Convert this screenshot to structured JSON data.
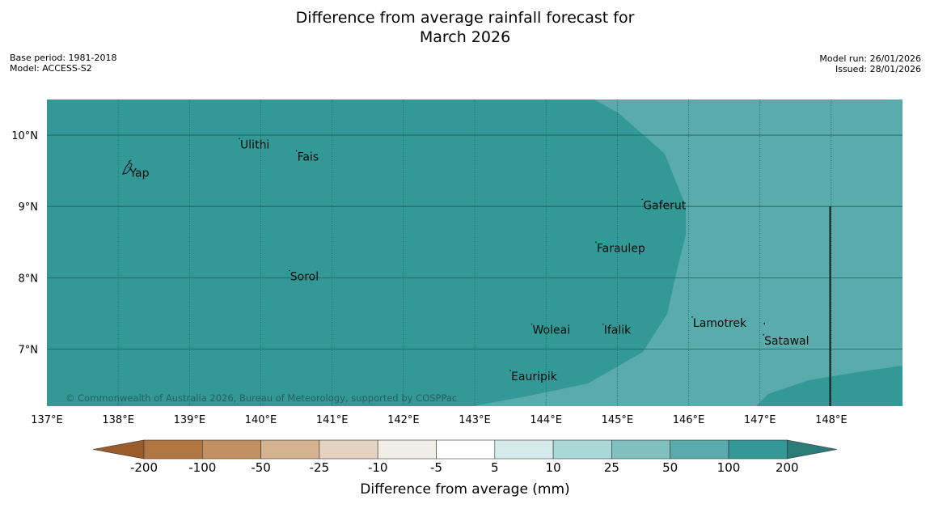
{
  "title": {
    "line1": "Difference from average rainfall forecast for",
    "line2": "March 2026"
  },
  "meta_left": {
    "base_period": "Base period: 1981-2018",
    "model": "Model: ACCESS-S2"
  },
  "meta_right": {
    "model_run": "Model run: 26/01/2026",
    "issued": "Issued: 28/01/2026"
  },
  "map": {
    "lon_range": [
      137,
      149
    ],
    "lat_range": [
      6.2,
      10.5
    ],
    "lon_ticks": [
      {
        "value": 137,
        "label": "137°E"
      },
      {
        "value": 138,
        "label": "138°E"
      },
      {
        "value": 139,
        "label": "139°E"
      },
      {
        "value": 140,
        "label": "140°E"
      },
      {
        "value": 141,
        "label": "141°E"
      },
      {
        "value": 142,
        "label": "142°E"
      },
      {
        "value": 143,
        "label": "143°E"
      },
      {
        "value": 144,
        "label": "144°E"
      },
      {
        "value": 145,
        "label": "145°E"
      },
      {
        "value": 146,
        "label": "146°E"
      },
      {
        "value": 147,
        "label": "147°E"
      },
      {
        "value": 148,
        "label": "148°E"
      }
    ],
    "lat_ticks": [
      {
        "value": 10,
        "label": "10°N"
      },
      {
        "value": 9,
        "label": "9°N"
      },
      {
        "value": 8,
        "label": "8°N"
      },
      {
        "value": 7,
        "label": "7°N"
      }
    ],
    "places": [
      {
        "name": "Ulithi",
        "lon": 139.7,
        "lat": 9.95
      },
      {
        "name": "Fais",
        "lon": 140.5,
        "lat": 9.78
      },
      {
        "name": "Yap",
        "lon": 138.15,
        "lat": 9.55
      },
      {
        "name": "Gaferut",
        "lon": 145.35,
        "lat": 9.1
      },
      {
        "name": "Faraulep",
        "lon": 144.7,
        "lat": 8.5
      },
      {
        "name": "Sorol",
        "lon": 140.4,
        "lat": 8.1
      },
      {
        "name": "Lamotrek",
        "lon": 146.05,
        "lat": 7.45
      },
      {
        "name": "Woleai",
        "lon": 143.8,
        "lat": 7.35
      },
      {
        "name": "Ifalik",
        "lon": 144.8,
        "lat": 7.35
      },
      {
        "name": "Satawal",
        "lon": 147.05,
        "lat": 7.2
      },
      {
        "name": "Eauripik",
        "lon": 143.5,
        "lat": 6.7
      }
    ],
    "colors": {
      "high": "#329996",
      "mid": "#5aabab",
      "grid": "#1f5f5c"
    },
    "copyright": "© Commonwealth of Australia 2026, Bureau of Meteorology, supported by COSPPac"
  },
  "colorbar": {
    "labels": [
      "-200",
      "-100",
      "-50",
      "-25",
      "-10",
      "-5",
      "5",
      "10",
      "25",
      "50",
      "100",
      "200"
    ],
    "colors": [
      "#b17540",
      "#c1925f",
      "#d5b290",
      "#e5d2c0",
      "#f1eee8",
      "#ffffff",
      "#d5ebea",
      "#aad8d7",
      "#80c0bf",
      "#5aabab",
      "#329996"
    ],
    "low_extend_color": "#9b5c2b",
    "high_extend_color": "#2b7b78",
    "title": "Difference from average (mm)"
  }
}
